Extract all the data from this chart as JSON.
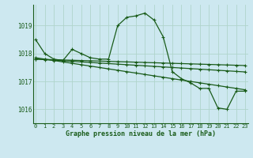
{
  "title": "Graphe pression niveau de la mer (hPa)",
  "bg_color": "#cde8f0",
  "grid_color": "#b0d4cc",
  "line_color": "#1a5c1a",
  "ylim": [
    1015.5,
    1019.75
  ],
  "yticks": [
    1016,
    1017,
    1018,
    1019
  ],
  "xlim": [
    -0.3,
    23.3
  ],
  "xticks": [
    0,
    1,
    2,
    3,
    4,
    5,
    6,
    7,
    8,
    9,
    10,
    11,
    12,
    13,
    14,
    15,
    16,
    17,
    18,
    19,
    20,
    21,
    22,
    23
  ],
  "series": {
    "line1": [
      1018.5,
      1018.0,
      1017.8,
      1017.75,
      1018.15,
      1018.0,
      1017.85,
      1017.8,
      1017.8,
      1019.0,
      1019.3,
      1019.35,
      1019.45,
      1019.2,
      1018.6,
      1017.35,
      1017.1,
      1016.95,
      1016.75,
      1016.75,
      1016.05,
      1016.0,
      1016.65,
      1016.65
    ],
    "line2": [
      1017.85,
      1017.8,
      1017.75,
      1017.7,
      1017.65,
      1017.6,
      1017.55,
      1017.5,
      1017.45,
      1017.4,
      1017.35,
      1017.3,
      1017.25,
      1017.2,
      1017.15,
      1017.1,
      1017.05,
      1017.0,
      1016.95,
      1016.9,
      1016.85,
      1016.8,
      1016.75,
      1016.7
    ],
    "line3": [
      1017.8,
      1017.78,
      1017.76,
      1017.74,
      1017.72,
      1017.7,
      1017.68,
      1017.66,
      1017.64,
      1017.62,
      1017.6,
      1017.58,
      1017.56,
      1017.54,
      1017.52,
      1017.5,
      1017.48,
      1017.46,
      1017.44,
      1017.42,
      1017.4,
      1017.38,
      1017.36,
      1017.34
    ],
    "line4": [
      1017.8,
      1017.79,
      1017.78,
      1017.77,
      1017.76,
      1017.75,
      1017.74,
      1017.73,
      1017.72,
      1017.71,
      1017.7,
      1017.69,
      1017.68,
      1017.67,
      1017.66,
      1017.65,
      1017.64,
      1017.63,
      1017.62,
      1017.61,
      1017.6,
      1017.59,
      1017.58,
      1017.57
    ]
  },
  "title_fontsize": 6,
  "tick_fontsize": 5,
  "ylabel_pad": 2,
  "xlabel_pad": 1
}
